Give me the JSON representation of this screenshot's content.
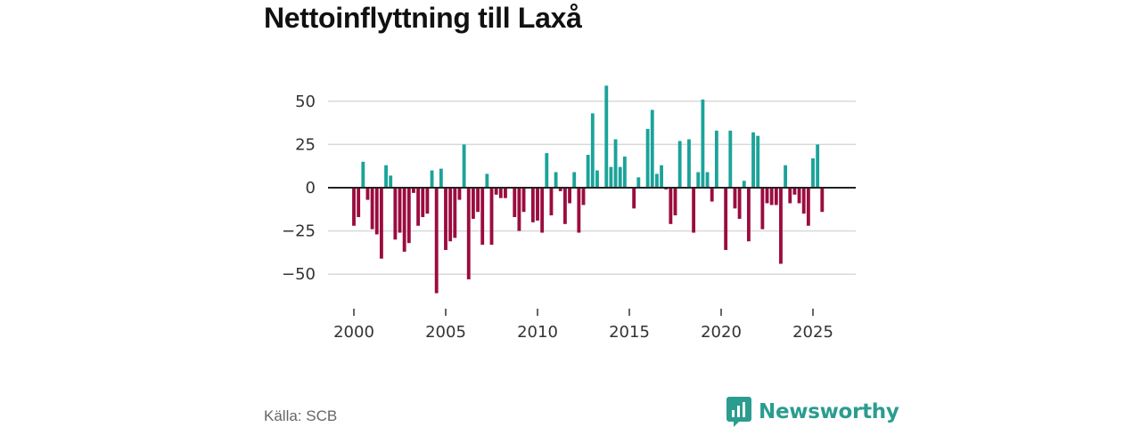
{
  "title": "Nettoinflyttning till Laxå",
  "source": "Källa: SCB",
  "brand": "Newsworthy",
  "colors": {
    "positive": "#1ba39a",
    "negative": "#9b0c3f",
    "brand": "#2a9d8f"
  },
  "chart_data": {
    "type": "bar",
    "title": "Nettoinflyttning till Laxå",
    "xlabel": "",
    "ylabel": "",
    "ylim": [
      -62,
      62
    ],
    "xlim": [
      1998.5,
      2026.4
    ],
    "yticks": [
      50,
      25,
      0,
      -25,
      -50
    ],
    "ytick_labels": [
      "50",
      "25",
      "0",
      "−25",
      "−50"
    ],
    "xticks": [
      2000,
      2005,
      2010,
      2015,
      2020,
      2025
    ],
    "xtick_labels": [
      "2000",
      "2005",
      "2010",
      "2015",
      "2020",
      "2025"
    ],
    "grid": true,
    "x_start": 2000,
    "period": "quarter",
    "values": [
      -22,
      -17,
      15,
      -7,
      -24,
      -27,
      -41,
      13,
      7,
      -30,
      -26,
      -37,
      -32,
      -3,
      -22,
      -17,
      -15,
      10,
      -61,
      11,
      -36,
      -31,
      -29,
      -7,
      25,
      -53,
      -18,
      -14,
      -33,
      8,
      -33,
      -4,
      -6,
      -6,
      0,
      -17,
      -25,
      -14,
      0,
      -20,
      -19,
      -26,
      20,
      -16,
      9,
      -2,
      -21,
      -9,
      9,
      -26,
      -10,
      19,
      43,
      10,
      0,
      59,
      12,
      28,
      12,
      18,
      0,
      -12,
      6,
      0,
      34,
      45,
      8,
      13,
      -1,
      -21,
      -16,
      27,
      0,
      28,
      -26,
      9,
      51,
      9,
      -8,
      33,
      0,
      -36,
      33,
      -12,
      -18,
      4,
      -31,
      32,
      30,
      -24,
      -9,
      -10,
      -10,
      -44,
      13,
      -9,
      -4,
      -9,
      -15,
      -22,
      17,
      25,
      -14
    ]
  }
}
